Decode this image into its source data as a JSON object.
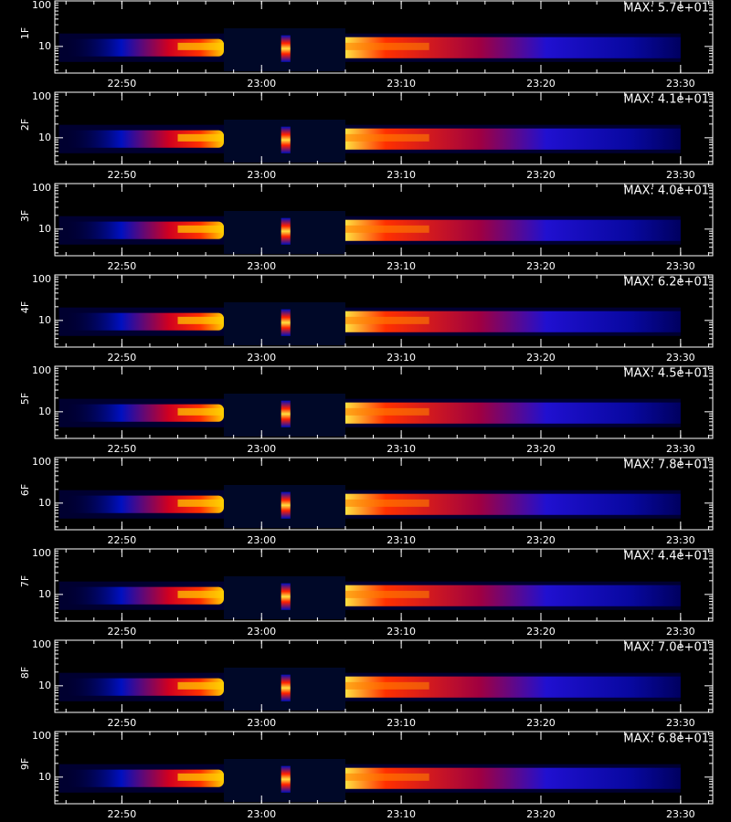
{
  "chart_data": {
    "type": "spectrogram",
    "xlim": [
      1365.2,
      1412.3
    ],
    "xticks": [
      {
        "value": 1370,
        "label": "22:50"
      },
      {
        "value": 1380,
        "label": "23:00"
      },
      {
        "value": 1390,
        "label": "23:10"
      },
      {
        "value": 1400,
        "label": "23:20"
      },
      {
        "value": 1410,
        "label": "23:30"
      }
    ],
    "ylim": [
      2.6,
      100
    ],
    "yticks": [
      10,
      100
    ],
    "log_y": true,
    "panels": [
      {
        "ylabel": "1F",
        "max": {
          "value": 57,
          "label": "MAX: 5.7e+01"
        }
      },
      {
        "ylabel": "2F",
        "max": {
          "value": 41,
          "label": "MAX: 4.1e+01"
        }
      },
      {
        "ylabel": "3F",
        "max": {
          "value": 40,
          "label": "MAX: 4.0e+01"
        }
      },
      {
        "ylabel": "4F",
        "max": {
          "value": 62,
          "label": "MAX: 6.2e+01"
        }
      },
      {
        "ylabel": "5F",
        "max": {
          "value": 45,
          "label": "MAX: 4.5e+01"
        }
      },
      {
        "ylabel": "6F",
        "max": {
          "value": 78,
          "label": "MAX: 7.8e+01"
        }
      },
      {
        "ylabel": "7F",
        "max": {
          "value": 44,
          "label": "MAX: 4.4e+01"
        }
      },
      {
        "ylabel": "8F",
        "max": {
          "value": 70,
          "label": "MAX: 7.0e+01"
        }
      },
      {
        "ylabel": "9F",
        "max": {
          "value": 68,
          "label": "MAX: 6.8e+01"
        }
      }
    ]
  }
}
